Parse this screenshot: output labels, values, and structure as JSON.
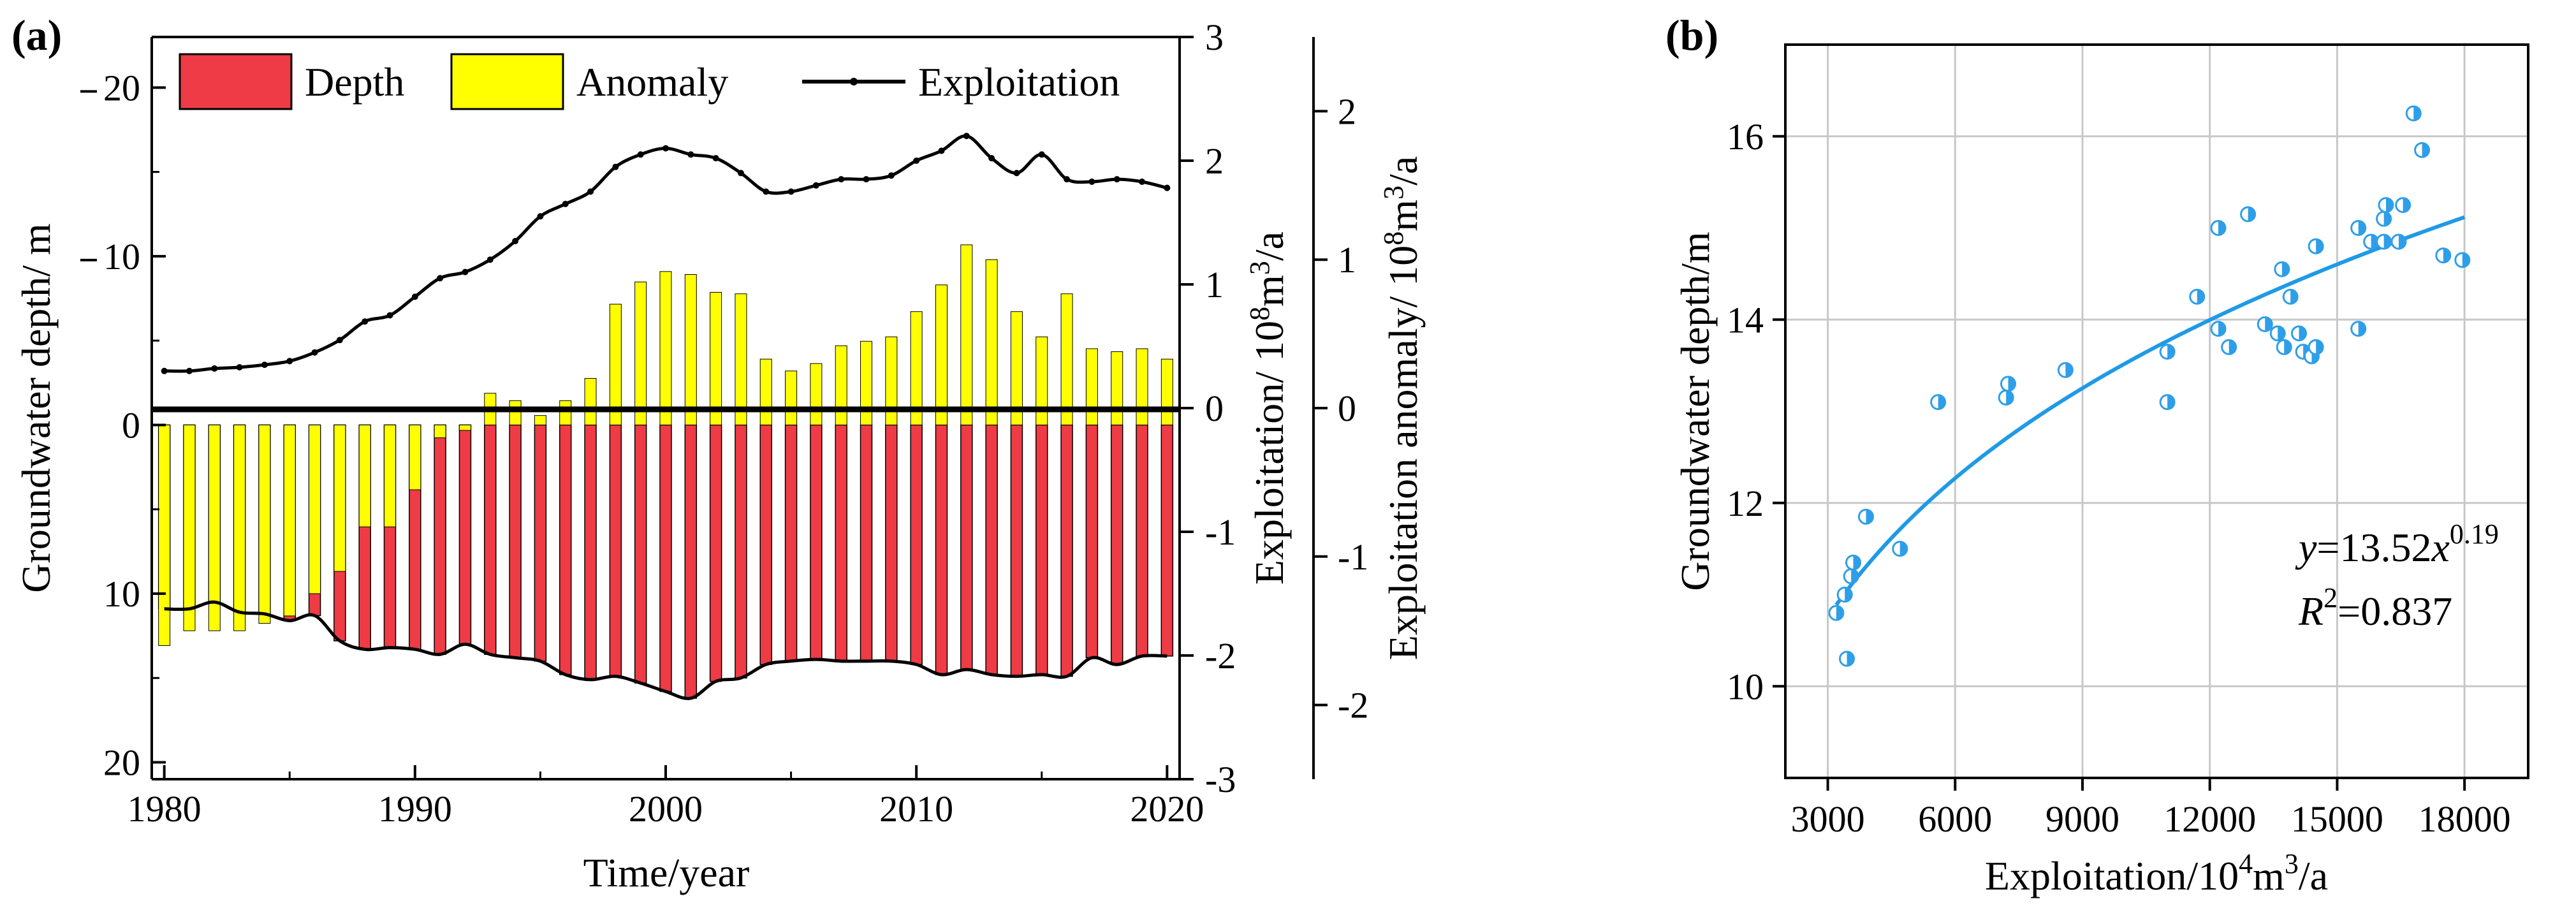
{
  "figure": {
    "panel_a_label": "(a)",
    "panel_b_label": "(b)",
    "legend": {
      "depth": "Depth",
      "anomaly": "Anomaly",
      "exploitation": "Exploitation"
    },
    "colors": {
      "depth_fill": "#ee3b45",
      "anomaly_fill": "#ffff00",
      "line": "#000000",
      "scatter_point": "#2f9ee8",
      "fit_line": "#1f9ae6",
      "grid": "#c8c8c8"
    }
  },
  "chart_data": [
    {
      "type": "bar",
      "panel": "(a)",
      "xlabel": "Time/year",
      "ylabel_left": "Groundwater depth/ m",
      "ylabel_right_inner": "Exploitation/ 10^8m^3/a",
      "ylabel_right_outer": "Exploitation anomaly/ 10^8m^3/a",
      "xlim": [
        1979.5,
        2020.5
      ],
      "ylim_left": [
        21,
        -23
      ],
      "ylim_right_inner": [
        -3,
        3
      ],
      "ylim_right_outer": [
        -2.5,
        2.5
      ],
      "x_ticks": [
        "1980",
        "1990",
        "2000",
        "2010",
        "2020"
      ],
      "y_ticks_left": [
        "20",
        "10",
        "0",
        "10",
        "20"
      ],
      "y_ticks_right_inner": [
        "-3",
        "-2",
        "-1",
        "0",
        "1",
        "2",
        "3"
      ],
      "y_ticks_right_outer": [
        "-2",
        "-1",
        "0",
        "1",
        "2"
      ],
      "legend_position": "top",
      "years": [
        1980,
        1981,
        1982,
        1983,
        1984,
        1985,
        1986,
        1987,
        1988,
        1989,
        1990,
        1991,
        1992,
        1993,
        1994,
        1995,
        1996,
        1997,
        1998,
        1999,
        2000,
        2001,
        2002,
        2003,
        2004,
        2005,
        2006,
        2007,
        2008,
        2009,
        2010,
        2011,
        2012,
        2013,
        2014,
        2015,
        2016,
        2017,
        2018,
        2019,
        2020
      ],
      "series": [
        {
          "name": "Depth",
          "axis": "left",
          "values": [
            10.9,
            10.9,
            10.5,
            11.1,
            11.2,
            11.6,
            11.3,
            12.8,
            13.3,
            13.2,
            13.3,
            13.6,
            13.0,
            13.6,
            13.8,
            14.0,
            14.8,
            15.1,
            14.9,
            15.3,
            15.8,
            16.2,
            15.2,
            15.0,
            14.2,
            14.0,
            13.9,
            14.0,
            14.0,
            14.0,
            14.2,
            14.8,
            14.5,
            14.8,
            14.9,
            14.8,
            14.9,
            13.8,
            14.2,
            13.7,
            13.7
          ]
        },
        {
          "name": "Anomaly",
          "axis": "right_outer",
          "values": [
            -1.6,
            -1.5,
            -1.5,
            -1.5,
            -1.45,
            -1.4,
            -1.25,
            -1.1,
            -0.8,
            -0.8,
            -0.55,
            -0.2,
            -0.15,
            0.1,
            0.05,
            -0.05,
            0.05,
            0.2,
            0.7,
            0.85,
            0.92,
            0.9,
            0.78,
            0.77,
            0.33,
            0.25,
            0.3,
            0.42,
            0.45,
            0.48,
            0.65,
            0.83,
            1.1,
            1.0,
            0.65,
            0.48,
            0.77,
            0.4,
            0.38,
            0.4,
            0.33
          ]
        },
        {
          "name": "Exploitation",
          "axis": "right_inner",
          "values": [
            0.3,
            0.3,
            0.32,
            0.33,
            0.35,
            0.38,
            0.45,
            0.55,
            0.7,
            0.75,
            0.9,
            1.05,
            1.1,
            1.2,
            1.35,
            1.55,
            1.65,
            1.75,
            1.95,
            2.05,
            2.1,
            2.05,
            2.02,
            1.9,
            1.75,
            1.75,
            1.8,
            1.85,
            1.85,
            1.88,
            2.0,
            2.08,
            2.2,
            2.02,
            1.9,
            2.05,
            1.85,
            1.83,
            1.85,
            1.83,
            1.78
          ]
        }
      ]
    },
    {
      "type": "scatter",
      "panel": "(b)",
      "xlabel": "Exploitation/10^4m^3/a",
      "ylabel": "Groundwater depth/m",
      "xlim": [
        2000,
        19500
      ],
      "ylim": [
        9,
        17
      ],
      "x_ticks": [
        "3000",
        "6000",
        "9000",
        "12000",
        "15000",
        "18000"
      ],
      "y_ticks": [
        "10",
        "12",
        "14",
        "16"
      ],
      "grid": true,
      "points": [
        [
          3200,
          10.8
        ],
        [
          3400,
          11.0
        ],
        [
          3450,
          10.3
        ],
        [
          3550,
          11.2
        ],
        [
          3600,
          11.35
        ],
        [
          3900,
          11.85
        ],
        [
          4700,
          11.5
        ],
        [
          5600,
          13.1
        ],
        [
          7200,
          13.15
        ],
        [
          7250,
          13.3
        ],
        [
          8600,
          13.45
        ],
        [
          11000,
          13.1
        ],
        [
          11000,
          13.65
        ],
        [
          11700,
          14.25
        ],
        [
          12200,
          13.9
        ],
        [
          12200,
          15.0
        ],
        [
          12450,
          13.7
        ],
        [
          12900,
          15.15
        ],
        [
          13300,
          13.95
        ],
        [
          13600,
          13.85
        ],
        [
          13700,
          14.55
        ],
        [
          13750,
          13.7
        ],
        [
          13900,
          14.25
        ],
        [
          14100,
          13.85
        ],
        [
          14200,
          13.65
        ],
        [
          14400,
          13.6
        ],
        [
          14500,
          13.7
        ],
        [
          14500,
          14.8
        ],
        [
          15500,
          15.0
        ],
        [
          15500,
          13.9
        ],
        [
          15800,
          14.85
        ],
        [
          16100,
          14.85
        ],
        [
          16100,
          15.1
        ],
        [
          16150,
          15.25
        ],
        [
          16450,
          14.85
        ],
        [
          16550,
          15.25
        ],
        [
          16800,
          16.25
        ],
        [
          17000,
          15.85
        ],
        [
          17500,
          14.7
        ],
        [
          17950,
          14.65
        ]
      ],
      "fit": {
        "a": 13.52,
        "b": 0.19,
        "x_from": 3200,
        "x_to": 18000
      },
      "equation_line1": {
        "y": "y",
        "eq": "=13.52",
        "x": "x",
        "exp": "0.19"
      },
      "equation_line2": {
        "r": "R",
        "sup": "2",
        "val": "=0.837"
      }
    }
  ],
  "labels_text": {
    "a_ylabel_left": "Groundwater depth/ m",
    "a_ylabel_inner_prefix": "Exploitation/ 10",
    "a_ylabel_inner_sup1": "8",
    "a_ylabel_inner_mid": "m",
    "a_ylabel_inner_sup2": "3",
    "a_ylabel_inner_suffix": "/a",
    "a_ylabel_outer_prefix": "Exploitation anomaly/ 10",
    "a_ylabel_outer_sup1": "8",
    "a_ylabel_outer_mid": "m",
    "a_ylabel_outer_sup2": "3",
    "a_ylabel_outer_suffix": "/a",
    "a_xlabel": "Time/year",
    "b_xlabel_prefix": "Exploitation/10",
    "b_xlabel_sup1": "4",
    "b_xlabel_mid": "m",
    "b_xlabel_sup2": "3",
    "b_xlabel_suffix": "/a",
    "b_ylabel": "Groundwater depth/m"
  }
}
